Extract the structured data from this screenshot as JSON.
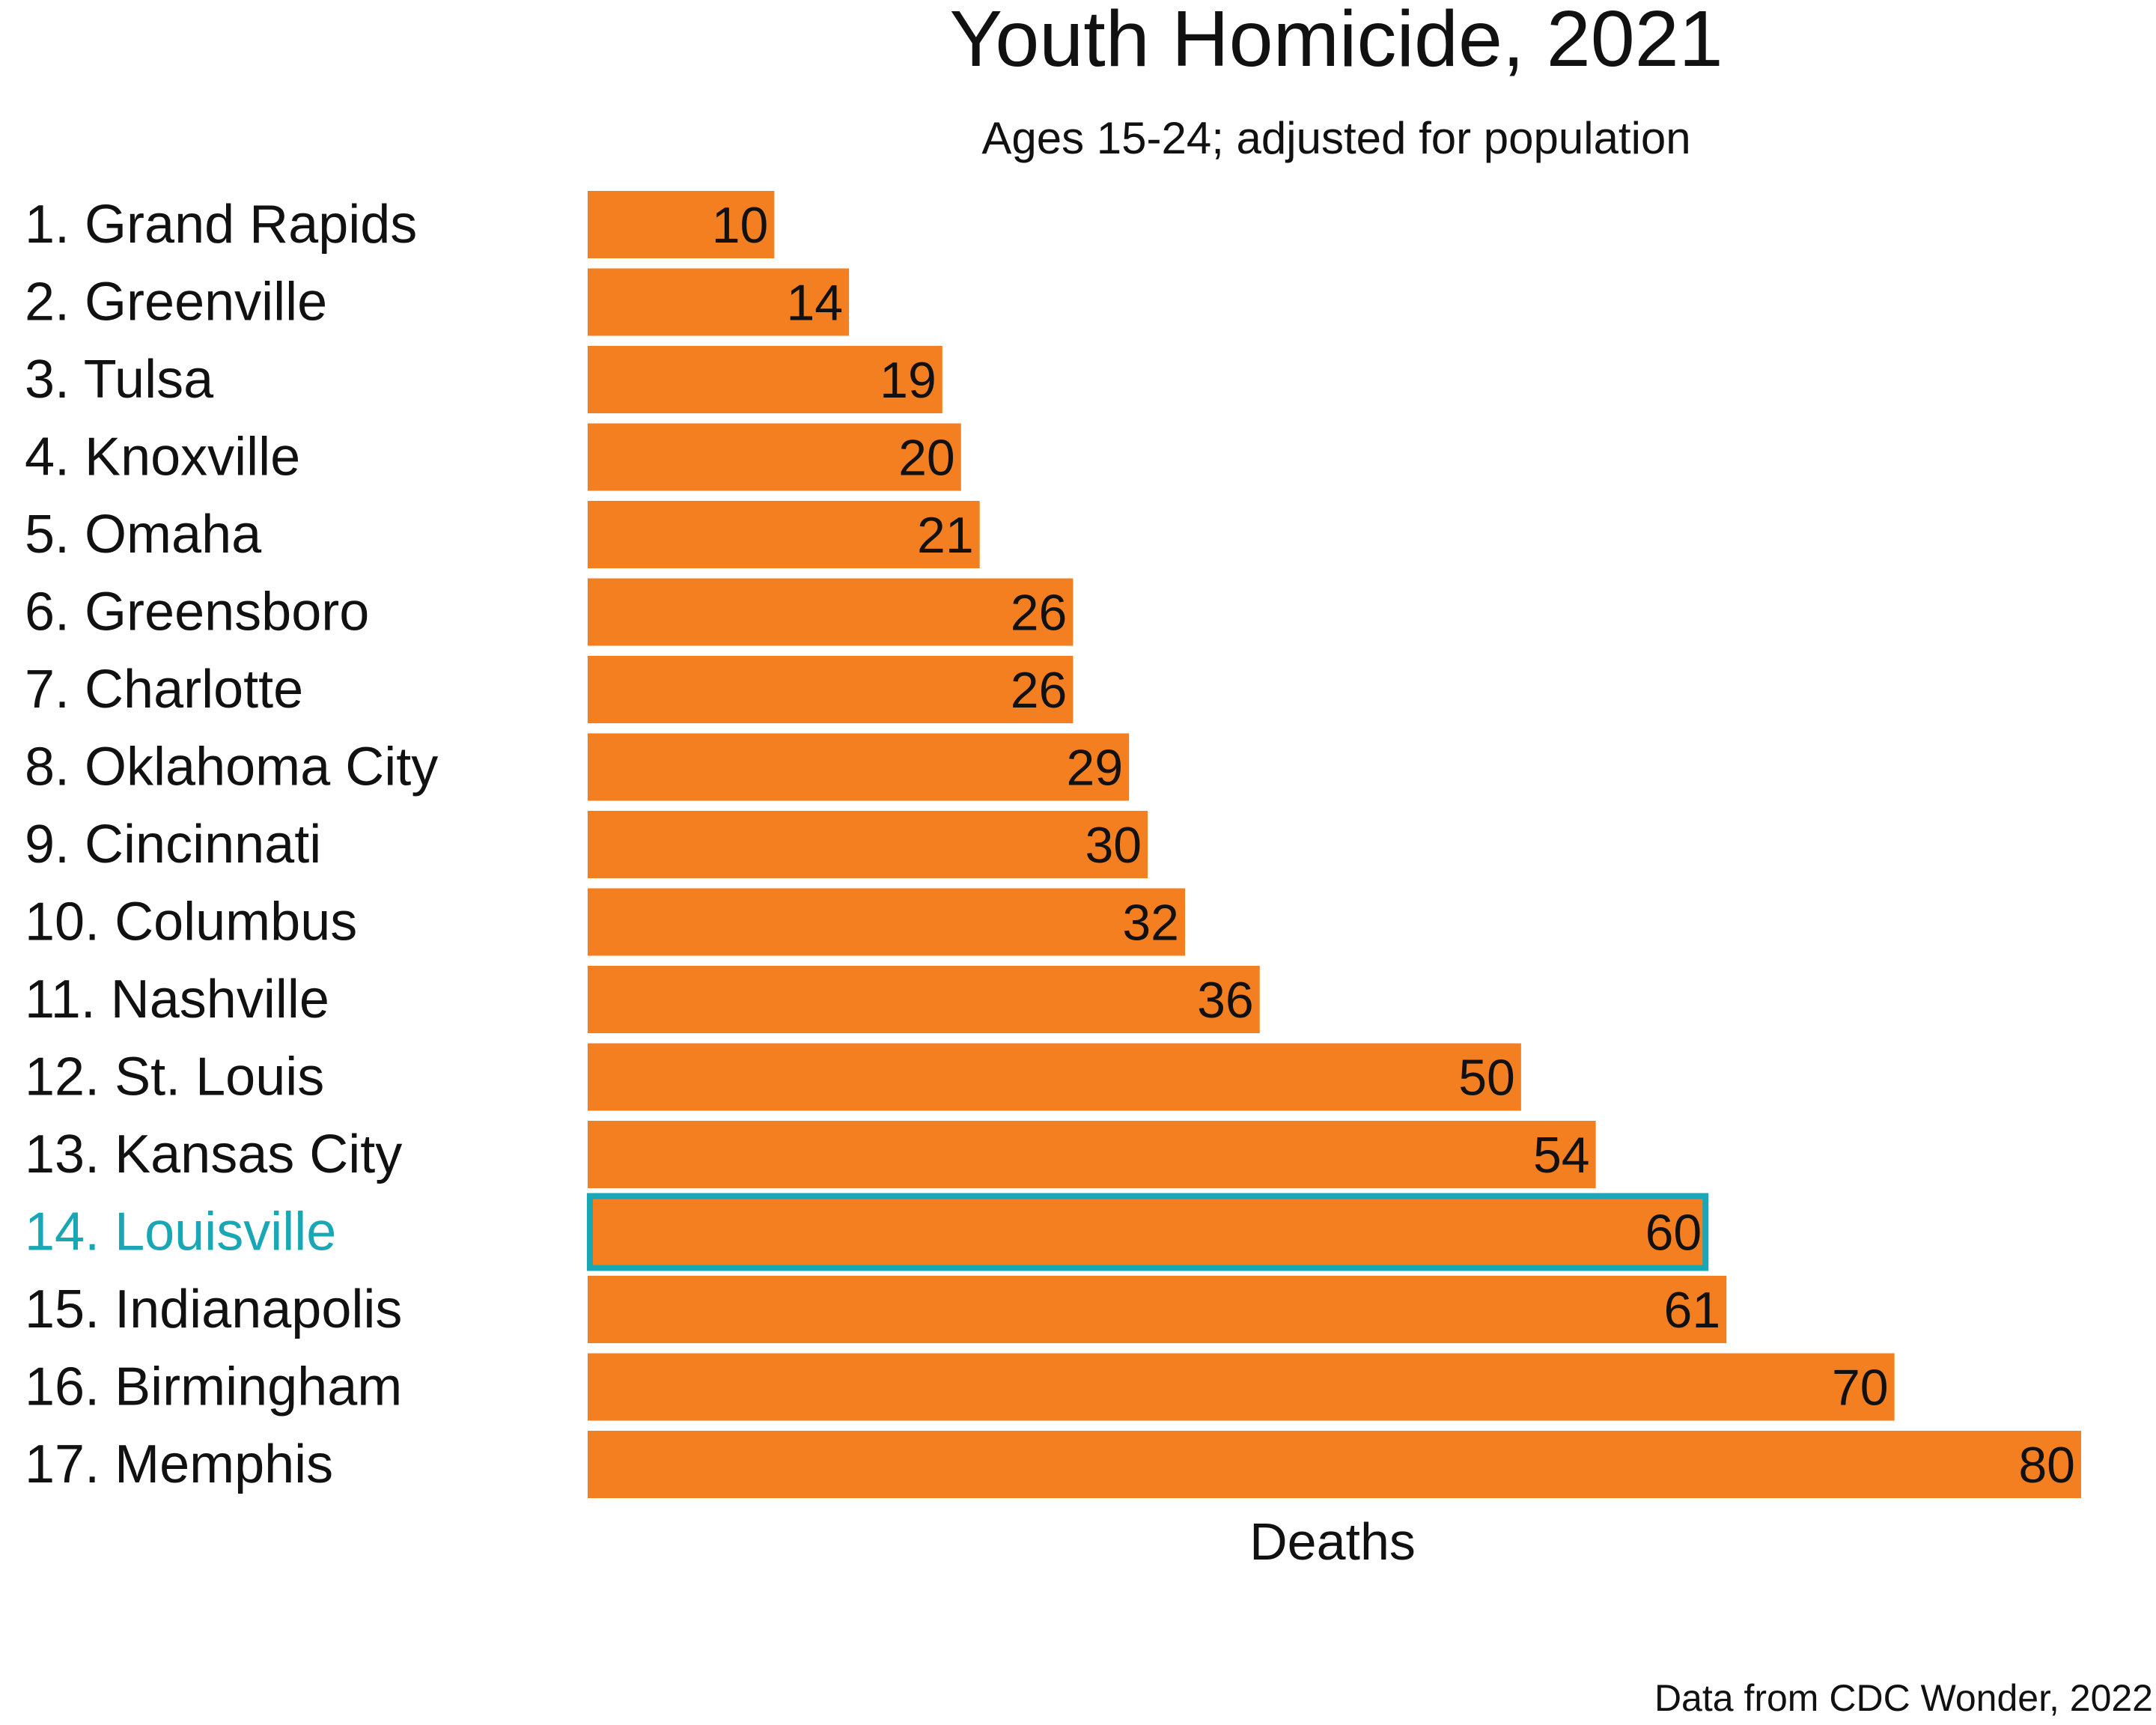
{
  "chart_data": {
    "type": "bar",
    "orientation": "horizontal",
    "title": "Youth Homicide, 2021",
    "subtitle": "Ages 15-24; adjusted for population",
    "xlabel": "Deaths",
    "ylabel": "",
    "source": "Data from CDC Wonder, 2022",
    "grid": false,
    "legend": "none",
    "xlim": [
      0,
      80
    ],
    "categories": [
      "1. Grand Rapids",
      "2. Greenville",
      "3. Tulsa",
      "4. Knoxville",
      "5. Omaha",
      "6. Greensboro",
      "7. Charlotte",
      "8. Oklahoma City",
      "9. Cincinnati",
      "10. Columbus",
      "11. Nashville",
      "12. St. Louis",
      "13. Kansas City",
      "14. Louisville",
      "15. Indianapolis",
      "16. Birmingham",
      "17. Memphis"
    ],
    "values": [
      10,
      14,
      19,
      20,
      21,
      26,
      26,
      29,
      30,
      32,
      36,
      50,
      54,
      60,
      61,
      70,
      80
    ],
    "highlight_index": 13,
    "colors": {
      "bar": "#F37F21",
      "highlight": "#1AA7B5",
      "text": "#111111"
    }
  }
}
